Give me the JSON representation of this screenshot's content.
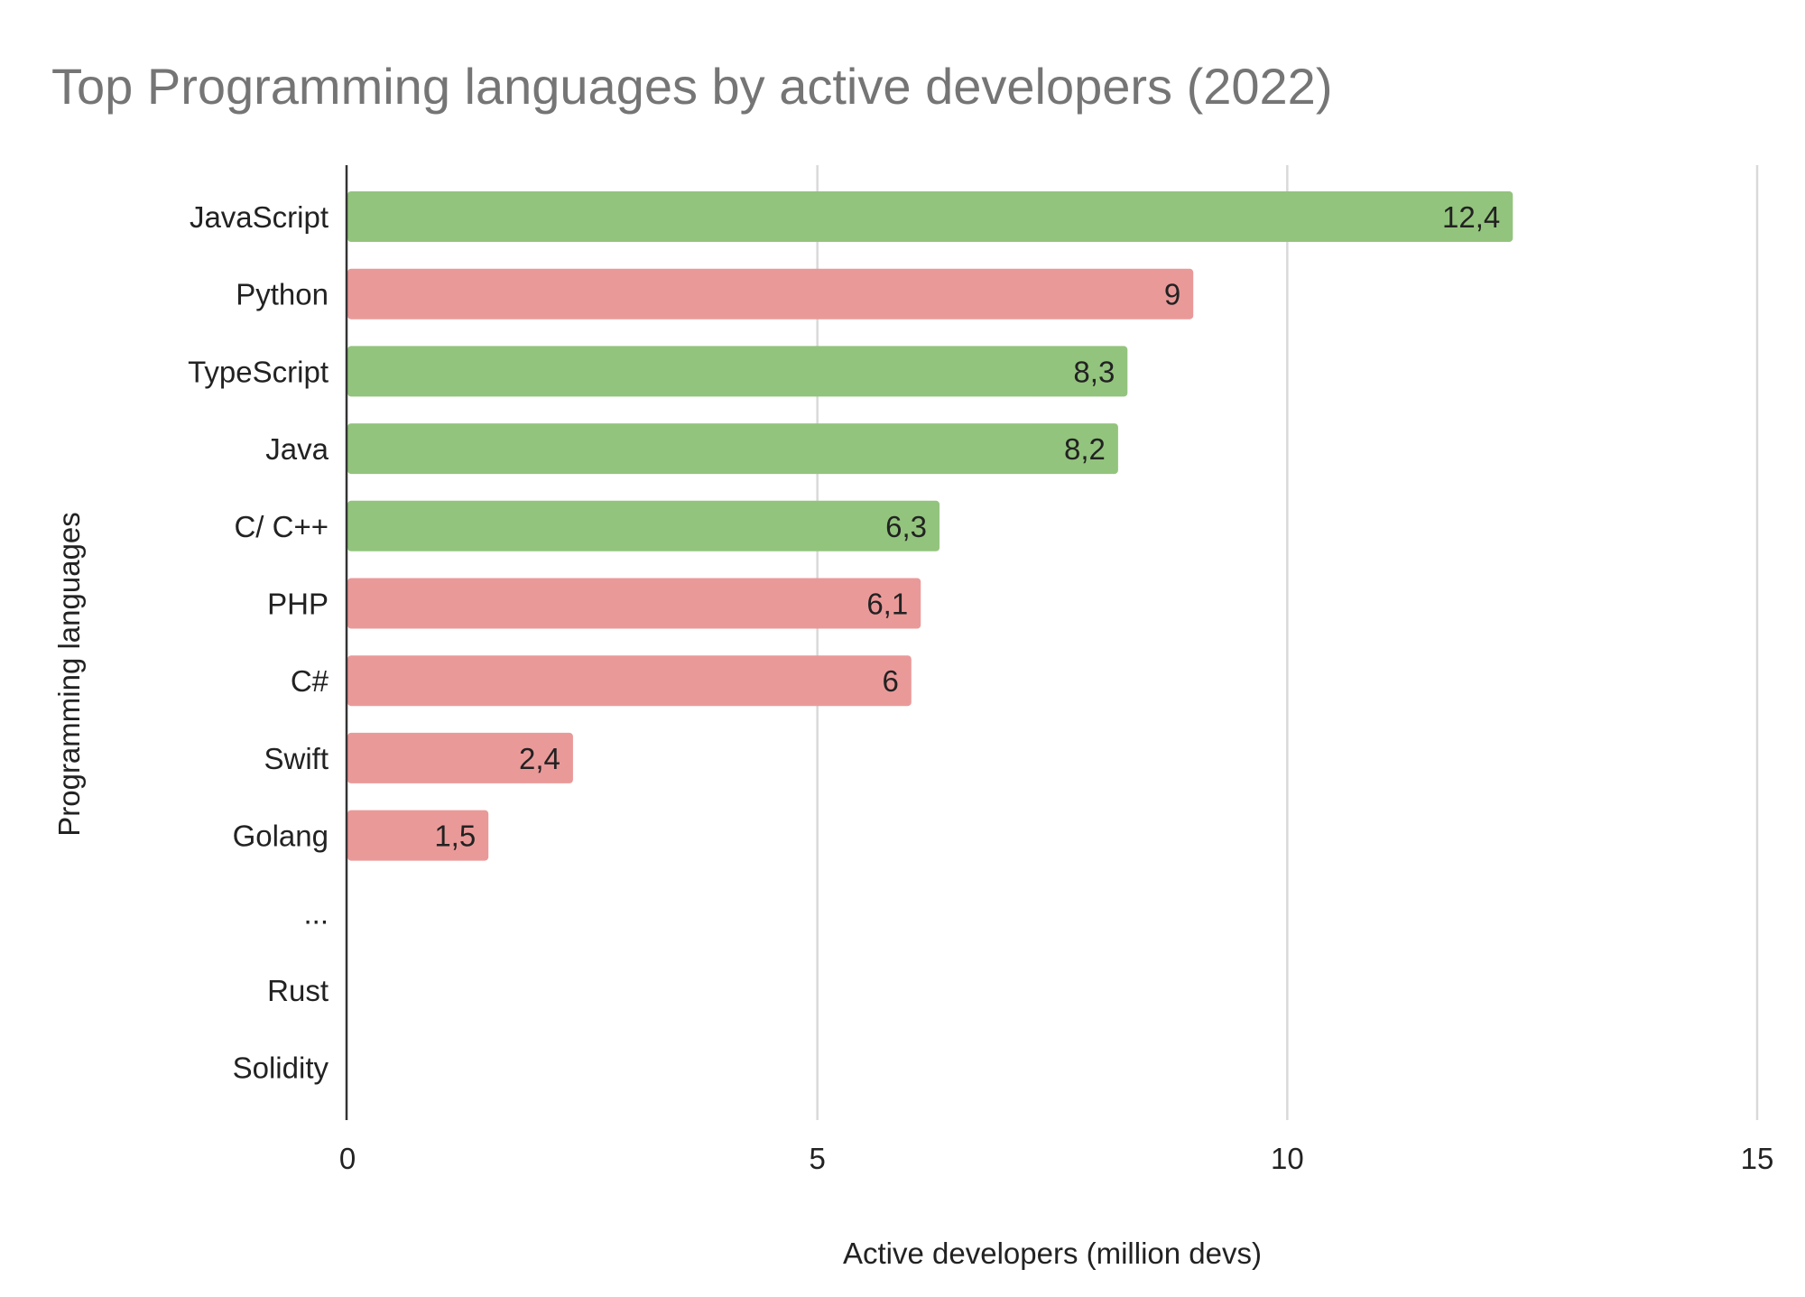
{
  "chart_data": {
    "type": "bar",
    "orientation": "horizontal",
    "title": "Top Programming languages by active developers (2022)",
    "xlabel": "Active developers (million devs)",
    "ylabel": "Programming languages",
    "categories": [
      "JavaScript",
      "Python",
      "TypeScript",
      "Java",
      "C/ C++",
      "PHP",
      "C#",
      "Swift",
      "Golang",
      "...",
      "Rust",
      "Solidity"
    ],
    "values": [
      12.4,
      9,
      8.3,
      8.2,
      6.3,
      6.1,
      6,
      2.4,
      1.5,
      null,
      null,
      null
    ],
    "data_labels": [
      "12,4",
      "9",
      "8,3",
      "8,2",
      "6,3",
      "6,1",
      "6",
      "2,4",
      "1,5",
      "",
      "",
      ""
    ],
    "bar_colors": [
      "#93c47d",
      "#ea9999",
      "#93c47d",
      "#93c47d",
      "#93c47d",
      "#ea9999",
      "#ea9999",
      "#ea9999",
      "#ea9999",
      "",
      "",
      ""
    ],
    "xlim": [
      0,
      15
    ],
    "xticks": [
      "0",
      "5",
      "10",
      "15"
    ],
    "xtick_values": [
      0,
      5,
      10,
      15
    ],
    "grid": "vertical",
    "legend": "none"
  }
}
